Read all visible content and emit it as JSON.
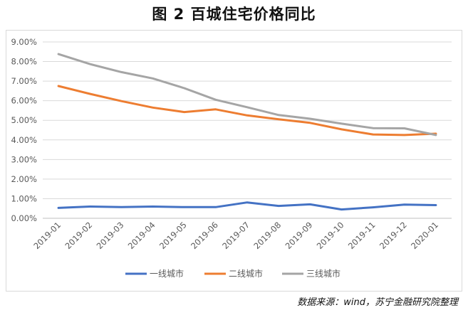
{
  "title": "图 2  百城住宅价格同比",
  "source": "数据来源：wind，苏宁金融研究院整理",
  "chart_data": {
    "type": "line",
    "categories": [
      "2019-01",
      "2019-02",
      "2019-03",
      "2019-04",
      "2019-05",
      "2019-06",
      "2019-07",
      "2019-08",
      "2019-09",
      "2019-10",
      "2019-11",
      "2019-12",
      "2020-01"
    ],
    "ylim": [
      0,
      9
    ],
    "yticks": [
      "0.00%",
      "1.00%",
      "2.00%",
      "3.00%",
      "4.00%",
      "5.00%",
      "6.00%",
      "7.00%",
      "8.00%",
      "9.00%"
    ],
    "grid": true,
    "legend_position": "bottom",
    "series": [
      {
        "name": "一线城市",
        "color": "#4472C4",
        "values": [
          0.53,
          0.6,
          0.57,
          0.6,
          0.57,
          0.57,
          0.81,
          0.63,
          0.71,
          0.45,
          0.56,
          0.7,
          0.67
        ]
      },
      {
        "name": "二线城市",
        "color": "#ED7D31",
        "values": [
          6.75,
          6.35,
          5.98,
          5.65,
          5.42,
          5.56,
          5.25,
          5.05,
          4.87,
          4.54,
          4.28,
          4.25,
          4.32
        ]
      },
      {
        "name": "三线城市",
        "color": "#A5A5A5",
        "values": [
          8.38,
          7.87,
          7.46,
          7.14,
          6.64,
          6.05,
          5.67,
          5.27,
          5.08,
          4.83,
          4.6,
          4.59,
          4.25
        ]
      }
    ]
  }
}
